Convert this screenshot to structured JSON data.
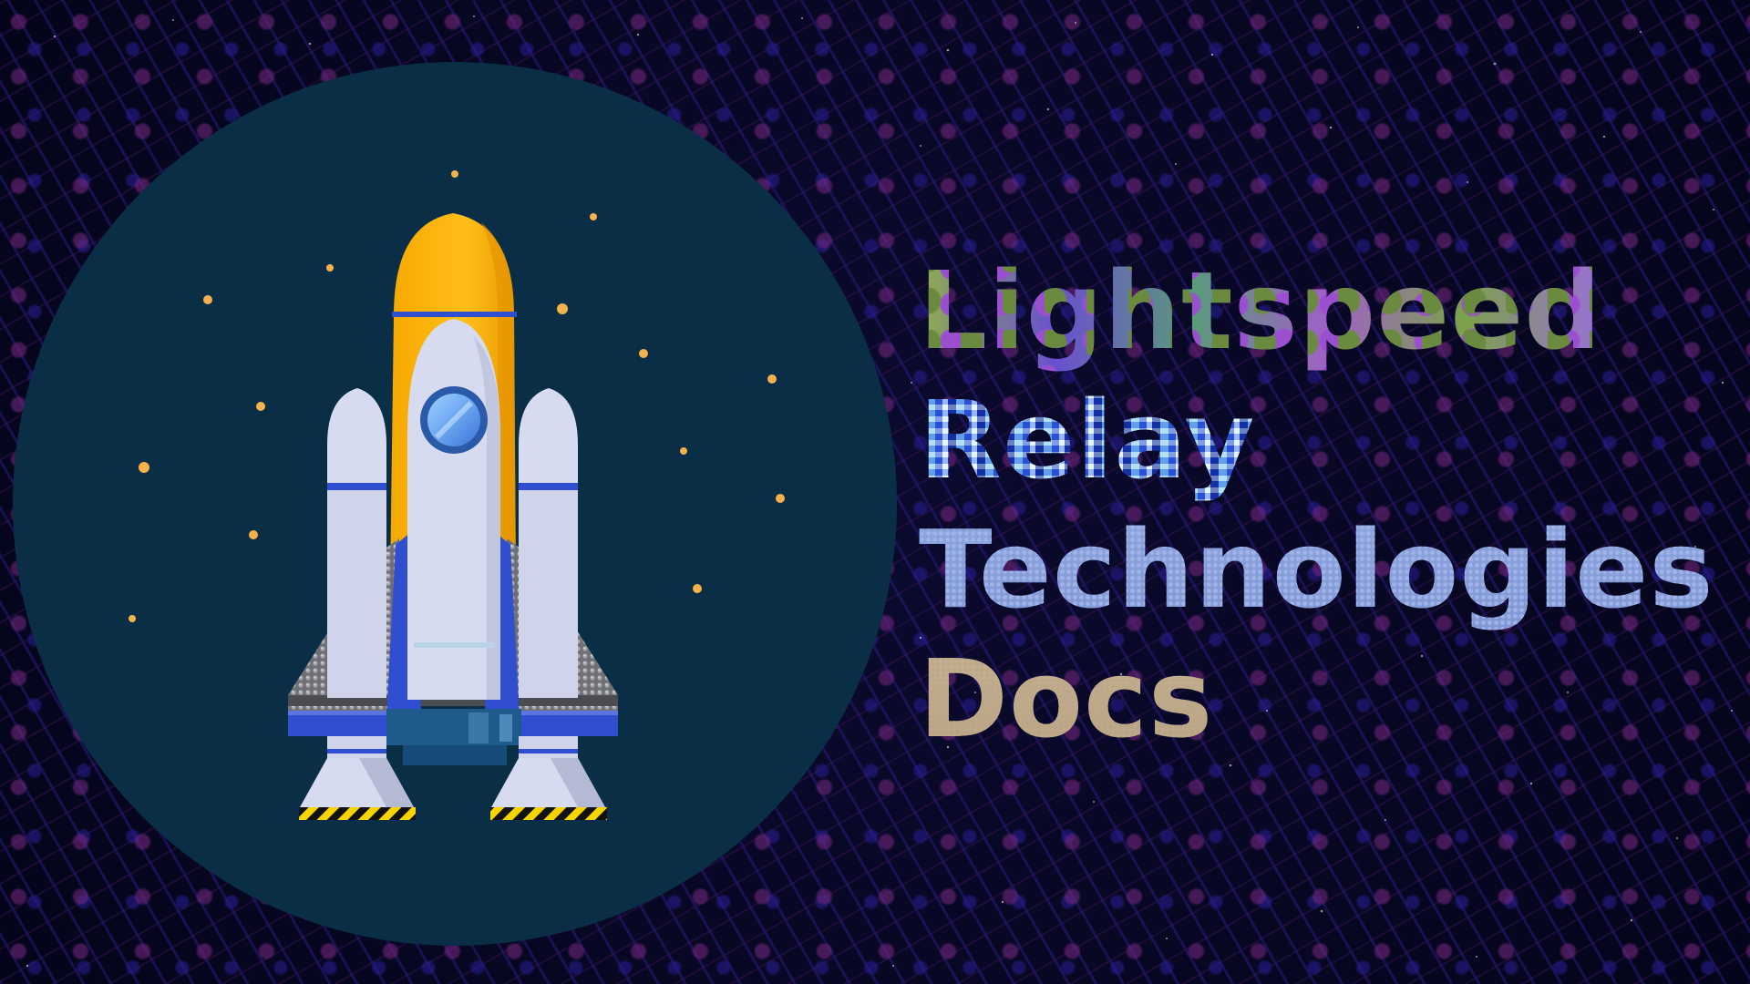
{
  "title": {
    "line_1": "Lightspeed",
    "line_2": "Relay",
    "line_3": "Technologies",
    "line_4": "Docs"
  },
  "logo": {
    "icon": "rocket-icon",
    "colors": {
      "circle": "#0a2e45",
      "nose": "#f5b800",
      "body": "#d7dbef",
      "accent_blue": "#2f4fd0",
      "star": "#f5b14c",
      "wing": "#8a8c92"
    }
  },
  "background": {
    "colors": {
      "base": "#05061c",
      "pattern_blue": "#28197a",
      "pattern_purple": "#7a2882"
    }
  }
}
